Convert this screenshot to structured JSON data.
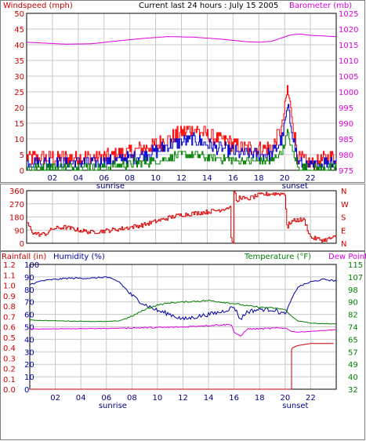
{
  "header": {
    "left_title": "Windspeed (mph)",
    "center_title": "Current last 24 hours : July 15 2005",
    "right_title": "Barometer (mb)"
  },
  "colors": {
    "windspeed": "#cc0000",
    "wind_gust": "#ff0000",
    "wind_avg": "#0000cc",
    "wind_low": "#008000",
    "barometer": "#dd00dd",
    "direction": "#dd0000",
    "rain": "#cc0000",
    "humidity": "#0000aa",
    "temperature": "#008000",
    "dewpoint": "#dd00dd",
    "grid": "#c8c8c8",
    "frame": "#000000"
  },
  "chart_data": [
    {
      "type": "line",
      "title": "",
      "left_axis": {
        "label": "Windspeed (mph)",
        "ticks": [
          "0",
          "5",
          "10",
          "15",
          "20",
          "25",
          "30",
          "35",
          "40",
          "45",
          "50"
        ],
        "range": [
          0,
          50
        ]
      },
      "right_axis": {
        "label": "Barometer (mb)",
        "ticks": [
          "975",
          "980",
          "985",
          "990",
          "995",
          "1000",
          "1005",
          "1010",
          "1015",
          "1020",
          "1025"
        ],
        "range": [
          975,
          1025
        ]
      },
      "x_ticks": [
        "02",
        "04",
        "06",
        "08",
        "10",
        "12",
        "14",
        "16",
        "18",
        "20",
        "22"
      ],
      "x_markers": [
        {
          "label": "sunrise",
          "hour": 6.5
        },
        {
          "label": "sunset",
          "hour": 20.8
        }
      ],
      "series": [
        {
          "key": "gust",
          "axis": "left",
          "hours": [
            0,
            2,
            4,
            6,
            8,
            10,
            11,
            12,
            13,
            14,
            15,
            16,
            17,
            18,
            19,
            19.8,
            20.2,
            20.6,
            21,
            22,
            23.5
          ],
          "values": [
            4,
            4,
            4,
            4,
            6,
            8,
            10,
            12,
            13,
            11,
            10,
            8,
            7,
            7,
            7,
            14,
            26,
            16,
            4,
            2,
            4
          ]
        },
        {
          "key": "avg",
          "axis": "left",
          "hours": [
            0,
            2,
            4,
            6,
            8,
            10,
            11,
            12,
            13,
            14,
            15,
            16,
            17,
            18,
            19,
            19.8,
            20.2,
            20.6,
            21,
            22,
            23.5
          ],
          "values": [
            2.5,
            2.5,
            2.5,
            2.5,
            4,
            6,
            8,
            9,
            10,
            8,
            7,
            6,
            5,
            5,
            5,
            10,
            20,
            12,
            2.5,
            1,
            3
          ]
        },
        {
          "key": "low",
          "axis": "left",
          "hours": [
            0,
            2,
            4,
            6,
            8,
            10,
            11,
            12,
            13,
            14,
            15,
            16,
            17,
            18,
            19,
            19.8,
            20.2,
            20.6,
            21,
            22,
            23.5
          ],
          "values": [
            1,
            1,
            1,
            1,
            2,
            3,
            4,
            5,
            5,
            4,
            4,
            3,
            3,
            3,
            3,
            6,
            12,
            6,
            1,
            0,
            1
          ]
        },
        {
          "key": "barometer",
          "axis": "right",
          "hours": [
            0,
            1,
            3,
            5,
            7,
            9,
            11,
            13,
            15,
            17,
            18,
            19,
            20,
            20.5,
            21.2,
            22,
            23,
            23.8
          ],
          "values": [
            1015.8,
            1015.6,
            1015.2,
            1015.3,
            1016.2,
            1017.0,
            1017.6,
            1017.4,
            1016.8,
            1016.0,
            1015.8,
            1016.1,
            1017.5,
            1018.2,
            1018.4,
            1018.0,
            1017.8,
            1017.6
          ]
        }
      ]
    },
    {
      "type": "line",
      "title": "",
      "left_axis": {
        "label": "",
        "ticks": [
          "0",
          "90",
          "180",
          "270",
          "360"
        ],
        "range": [
          0,
          360
        ]
      },
      "right_axis": {
        "label": "",
        "ticks": [
          "N",
          "W",
          "S",
          "E",
          "N"
        ]
      },
      "x_ticks": [],
      "series": [
        {
          "key": "direction",
          "axis": "left",
          "hours": [
            0,
            0.5,
            1,
            1.5,
            2,
            3,
            4,
            5,
            6,
            7,
            8,
            9,
            10,
            11,
            12,
            13,
            14,
            15,
            15.8,
            15.85,
            16,
            16.05,
            16.2,
            16.3,
            16.5,
            17,
            18,
            19,
            20,
            20.2,
            20.3,
            20.5,
            21,
            21.5,
            22,
            22.5,
            23,
            23.8
          ],
          "values": [
            140,
            70,
            60,
            65,
            100,
            110,
            90,
            75,
            85,
            95,
            110,
            125,
            150,
            175,
            195,
            205,
            215,
            230,
            250,
            0,
            0,
            350,
            320,
            270,
            320,
            300,
            330,
            340,
            340,
            80,
            130,
            150,
            160,
            160,
            40,
            30,
            20,
            40
          ]
        }
      ]
    },
    {
      "type": "line",
      "title": "",
      "left_labels": {
        "rain": "Rainfall (in)",
        "humidity": "Humidity (%)"
      },
      "right_labels": {
        "temperature": "Temperature (°F)",
        "dewpoint": "Dew Point"
      },
      "humidity_ticks": [
        "0",
        "10",
        "20",
        "30",
        "40",
        "50",
        "60",
        "70",
        "80",
        "90",
        "100"
      ],
      "rain_ticks": [
        "0.0",
        "0.1",
        "0.2",
        "0.3",
        "0.4",
        "0.5",
        "0.6",
        "0.7",
        "0.8",
        "0.9",
        "1.0",
        "1.1",
        "1.2"
      ],
      "temperature_ticks": [
        "32",
        "40",
        "49",
        "57",
        "65",
        "74",
        "82",
        "90",
        "98",
        "107",
        "115"
      ],
      "x_ticks": [
        "02",
        "04",
        "06",
        "08",
        "10",
        "12",
        "14",
        "16",
        "18",
        "20",
        "22"
      ],
      "x_markers": [
        {
          "label": "sunrise",
          "hour": 6.5
        },
        {
          "label": "sunset",
          "hour": 20.8
        }
      ],
      "humidity_range": [
        0,
        100
      ],
      "rain_range": [
        0,
        1.2
      ],
      "temperature_range": [
        32,
        115
      ],
      "series": [
        {
          "key": "humidity",
          "axis": "humidity",
          "hours": [
            0,
            1,
            2,
            3,
            4,
            5,
            6,
            7,
            8,
            9,
            10,
            11,
            12,
            13,
            14,
            15,
            16,
            16.5,
            17,
            18,
            19,
            19.5,
            20,
            20.5,
            21,
            21.5,
            22,
            23,
            23.8
          ],
          "values": [
            84,
            87,
            88,
            89,
            89,
            89,
            90,
            86,
            75,
            68,
            63,
            60,
            56,
            58,
            60,
            62,
            66,
            56,
            62,
            64,
            64,
            62,
            60,
            72,
            82,
            84,
            86,
            88,
            87
          ]
        },
        {
          "key": "temperature",
          "axis": "temperature",
          "hours": [
            0,
            2,
            4,
            6,
            7,
            8,
            9,
            10,
            11,
            12,
            13,
            14,
            15,
            16,
            17,
            18,
            19,
            20,
            20.5,
            21,
            22,
            23,
            23.8
          ],
          "values": [
            78.0,
            77.5,
            77.2,
            77.0,
            77.5,
            80.5,
            85.0,
            88.0,
            89.5,
            90.0,
            90.5,
            91.0,
            90.0,
            89.0,
            87.5,
            86.5,
            86.0,
            85.0,
            80.5,
            77.5,
            76.0,
            75.5,
            75.5
          ]
        },
        {
          "key": "dewpoint",
          "axis": "temperature",
          "hours": [
            0,
            2,
            4,
            6,
            8,
            10,
            12,
            13,
            14,
            15,
            15.8,
            16,
            16.5,
            17,
            18,
            19,
            20,
            20.5,
            21,
            22,
            23,
            23.8
          ],
          "values": [
            72.0,
            72.2,
            72.3,
            72.4,
            72.8,
            73.0,
            73.4,
            74.0,
            74.4,
            74.8,
            75.0,
            70.0,
            67.0,
            72.0,
            72.2,
            72.5,
            72.8,
            70.5,
            70.0,
            70.5,
            71.0,
            71.5
          ]
        },
        {
          "key": "rain",
          "axis": "rain",
          "hours": [
            0,
            20.5,
            20.5,
            20.6,
            21,
            21.5,
            22,
            23,
            23.8
          ],
          "values": [
            0.0,
            0.0,
            0.38,
            0.4,
            0.42,
            0.43,
            0.44,
            0.44,
            0.44
          ]
        }
      ]
    }
  ]
}
